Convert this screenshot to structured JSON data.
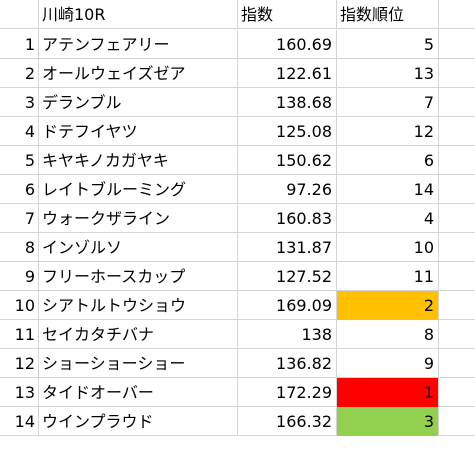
{
  "header": {
    "name": "川崎10R",
    "score": "指数",
    "rank": "指数順位"
  },
  "rows": [
    {
      "no": "1",
      "name": "アテンフェアリー",
      "score": "160.69",
      "rank": "5",
      "highlight": ""
    },
    {
      "no": "2",
      "name": "オールウェイズゼア",
      "score": "122.61",
      "rank": "13",
      "highlight": ""
    },
    {
      "no": "3",
      "name": "デランブル",
      "score": "138.68",
      "rank": "7",
      "highlight": ""
    },
    {
      "no": "4",
      "name": "ドテフイヤツ",
      "score": "125.08",
      "rank": "12",
      "highlight": ""
    },
    {
      "no": "5",
      "name": "キヤキノカガヤキ",
      "score": "150.62",
      "rank": "6",
      "highlight": ""
    },
    {
      "no": "6",
      "name": "レイトブルーミング",
      "score": "97.26",
      "rank": "14",
      "highlight": ""
    },
    {
      "no": "7",
      "name": "ウォークザライン",
      "score": "160.83",
      "rank": "4",
      "highlight": ""
    },
    {
      "no": "8",
      "name": "インゾルソ",
      "score": "131.87",
      "rank": "10",
      "highlight": ""
    },
    {
      "no": "9",
      "name": "フリーホースカップ",
      "score": "127.52",
      "rank": "11",
      "highlight": ""
    },
    {
      "no": "10",
      "name": "シアトルトウショウ",
      "score": "169.09",
      "rank": "2",
      "highlight": "#ffc000"
    },
    {
      "no": "11",
      "name": "セイカタチバナ",
      "score": "138",
      "rank": "8",
      "highlight": ""
    },
    {
      "no": "12",
      "name": "ショーショーショー",
      "score": "136.82",
      "rank": "9",
      "highlight": ""
    },
    {
      "no": "13",
      "name": "タイドオーバー",
      "score": "172.29",
      "rank": "1",
      "highlight": "#ff0000"
    },
    {
      "no": "14",
      "name": "ウインプラウド",
      "score": "166.32",
      "rank": "3",
      "highlight": "#92d050"
    }
  ],
  "colors": {
    "gridline": "#d4d4d4",
    "rank1": "#ff0000",
    "rank2": "#ffc000",
    "rank3": "#92d050"
  }
}
